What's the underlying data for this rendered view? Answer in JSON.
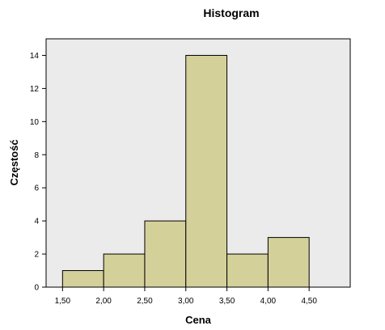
{
  "chart_data": {
    "type": "bar",
    "title": "Histogram",
    "xlabel": "Cena",
    "ylabel": "Częstość",
    "bins": [
      {
        "start": 1.5,
        "end": 2.0,
        "value": 1
      },
      {
        "start": 2.0,
        "end": 2.5,
        "value": 2
      },
      {
        "start": 2.5,
        "end": 3.0,
        "value": 4
      },
      {
        "start": 3.0,
        "end": 3.5,
        "value": 14
      },
      {
        "start": 3.5,
        "end": 4.0,
        "value": 2
      },
      {
        "start": 4.0,
        "end": 4.5,
        "value": 3
      }
    ],
    "x_ticks": [
      1.5,
      2.0,
      2.5,
      3.0,
      3.5,
      4.0,
      4.5
    ],
    "x_tick_labels": [
      "1,50",
      "2,00",
      "2,50",
      "3,00",
      "3,50",
      "4,00",
      "4,50"
    ],
    "xlim": [
      1.3,
      5.0
    ],
    "y_ticks": [
      0,
      2,
      4,
      6,
      8,
      10,
      12,
      14
    ],
    "y_tick_labels": [
      "0",
      "2",
      "4",
      "6",
      "8",
      "10",
      "12",
      "14"
    ],
    "ylim": [
      0,
      15
    ],
    "grid": false,
    "colors": {
      "plot_background": "#ebebeb",
      "bar_fill": "#d4d09a",
      "bar_stroke": "#000000",
      "axis": "#000000"
    }
  }
}
